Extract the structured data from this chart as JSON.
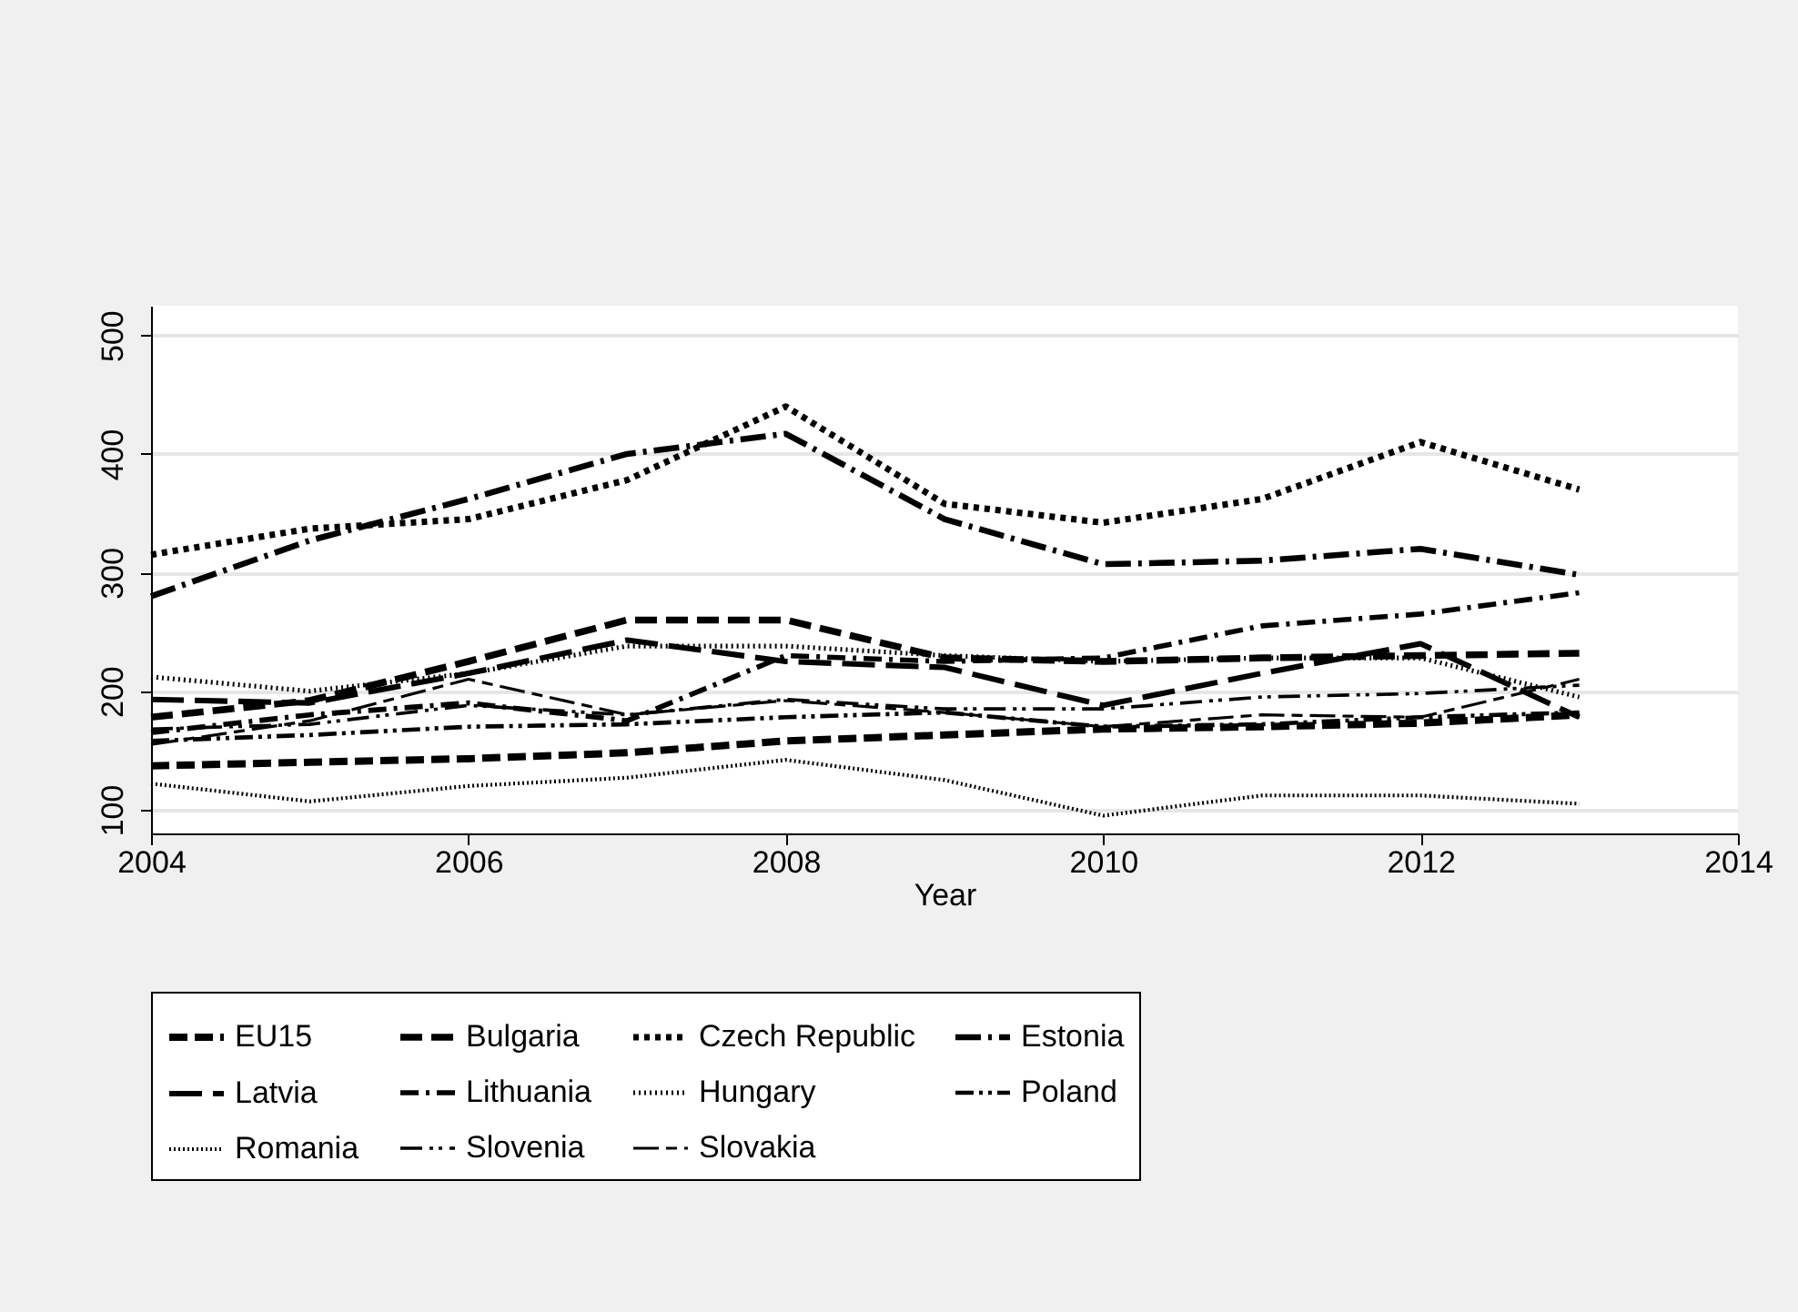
{
  "chart_data": {
    "type": "line",
    "xlabel": "Year",
    "x": [
      2004,
      2005,
      2006,
      2007,
      2008,
      2009,
      2010,
      2011,
      2012,
      2013
    ],
    "xlim": [
      2004,
      2014
    ],
    "xticks": [
      2004,
      2006,
      2008,
      2010,
      2012,
      2014
    ],
    "ylim": [
      80,
      525
    ],
    "yticks": [
      100,
      200,
      300,
      400,
      500
    ],
    "grid": "y",
    "legend": "bottom",
    "marker": "none",
    "series": [
      {
        "name": "EU15",
        "color": "#000000",
        "line_style": "dashed",
        "values": [
          137,
          140,
          143,
          148,
          158,
          163,
          168,
          170,
          173,
          180
        ]
      },
      {
        "name": "Bulgaria",
        "color": "#000000",
        "line_style": "dashed",
        "values": [
          178,
          192,
          225,
          260,
          260,
          228,
          225,
          228,
          230,
          232
        ]
      },
      {
        "name": "Czech Republic",
        "color": "#000000",
        "line_style": "dotted",
        "values": [
          315,
          337,
          345,
          378,
          440,
          358,
          342,
          362,
          410,
          370
        ]
      },
      {
        "name": "Estonia",
        "color": "#000000",
        "line_style": "dashed",
        "values": [
          280,
          327,
          362,
          400,
          417,
          345,
          307,
          310,
          320,
          298
        ]
      },
      {
        "name": "Latvia",
        "color": "#000000",
        "line_style": "dashed",
        "values": [
          193,
          190,
          215,
          243,
          225,
          220,
          188,
          215,
          240,
          178
        ]
      },
      {
        "name": "Lithuania",
        "color": "#000000",
        "line_style": "dashed",
        "values": [
          165,
          180,
          190,
          175,
          230,
          225,
          228,
          255,
          265,
          283
        ]
      },
      {
        "name": "Hungary",
        "color": "#000000",
        "line_style": "dotted",
        "values": [
          212,
          200,
          215,
          238,
          238,
          230,
          225,
          228,
          228,
          195
        ]
      },
      {
        "name": "Poland",
        "color": "#000000",
        "line_style": "dashed",
        "values": [
          158,
          163,
          170,
          172,
          178,
          182,
          170,
          172,
          178,
          182
        ]
      },
      {
        "name": "Romania",
        "color": "#000000",
        "line_style": "dotted",
        "values": [
          122,
          107,
          120,
          127,
          142,
          125,
          95,
          112,
          112,
          105
        ]
      },
      {
        "name": "Slovenia",
        "color": "#000000",
        "line_style": "dashed",
        "values": [
          168,
          172,
          188,
          180,
          193,
          185,
          185,
          195,
          198,
          205
        ]
      },
      {
        "name": "Slovakia",
        "color": "#000000",
        "line_style": "dashed",
        "values": [
          155,
          175,
          210,
          180,
          192,
          182,
          170,
          180,
          178,
          210
        ]
      }
    ]
  }
}
